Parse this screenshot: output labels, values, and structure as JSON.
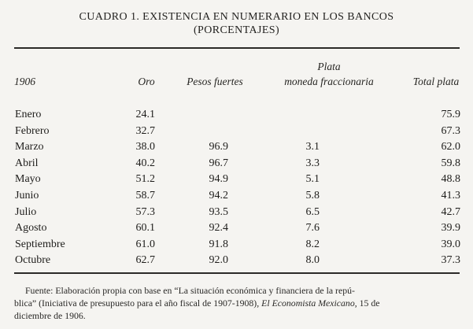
{
  "title": {
    "line1": "CUADRO 1. EXISTENCIA EN NUMERARIO EN LOS BANCOS",
    "line2": "(PORCENTAJES)"
  },
  "table": {
    "year_header": "1906",
    "columns": {
      "oro": "Oro",
      "pesos_fuertes": "Pesos fuertes",
      "plata_line1": "Plata",
      "plata_line2": "moneda fraccionaria",
      "total_plata": "Total plata"
    },
    "rows": [
      {
        "month": "Enero",
        "oro": "24.1",
        "pesos": "",
        "frac": "",
        "total": "75.9"
      },
      {
        "month": "Febrero",
        "oro": "32.7",
        "pesos": "",
        "frac": "",
        "total": "67.3"
      },
      {
        "month": "Marzo",
        "oro": "38.0",
        "pesos": "96.9",
        "frac": "3.1",
        "total": "62.0"
      },
      {
        "month": "Abril",
        "oro": "40.2",
        "pesos": "96.7",
        "frac": "3.3",
        "total": "59.8"
      },
      {
        "month": "Mayo",
        "oro": "51.2",
        "pesos": "94.9",
        "frac": "5.1",
        "total": "48.8"
      },
      {
        "month": "Junio",
        "oro": "58.7",
        "pesos": "94.2",
        "frac": "5.8",
        "total": "41.3"
      },
      {
        "month": "Julio",
        "oro": "57.3",
        "pesos": "93.5",
        "frac": "6.5",
        "total": "42.7"
      },
      {
        "month": "Agosto",
        "oro": "60.1",
        "pesos": "92.4",
        "frac": "7.6",
        "total": "39.9"
      },
      {
        "month": "Septiembre",
        "oro": "61.0",
        "pesos": "91.8",
        "frac": "8.2",
        "total": "39.0"
      },
      {
        "month": "Octubre",
        "oro": "62.7",
        "pesos": "92.0",
        "frac": "8.0",
        "total": "37.3"
      }
    ]
  },
  "footnote": {
    "line1": "Fuente: Elaboración propia con base en “La situación económica y financiera de la repú-",
    "line2_pre": "blica” (Iniciativa de presupuesto para el año fiscal de 1907-1908), ",
    "line2_italic": "El Economista Mexicano",
    "line2_post": ", 15 de",
    "line3": "diciembre de 1906."
  }
}
